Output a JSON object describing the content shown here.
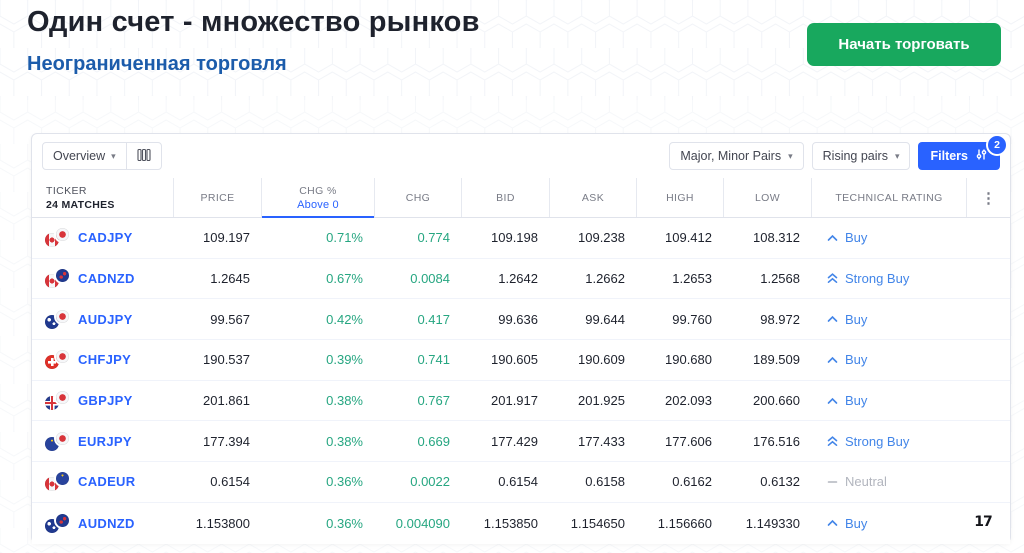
{
  "page": {
    "title": "Один счет - множество рынков",
    "subtitle": "Неограниченная торговля",
    "cta_label": "Начать торговать"
  },
  "toolbar": {
    "view_label": "Overview",
    "pairs_filter_label": "Major, Minor Pairs",
    "rising_filter_label": "Rising pairs",
    "filters_label": "Filters",
    "filters_badge": "2"
  },
  "icons": {
    "caret_down": "▾",
    "kebab": "⋮"
  },
  "table": {
    "header": {
      "ticker_label": "TICKER",
      "matches_label": "24 MATCHES",
      "price": "PRICE",
      "chg_pct": "CHG %",
      "chg_filter": "Above 0",
      "chg": "CHG",
      "bid": "BID",
      "ask": "ASK",
      "high": "HIGH",
      "low": "LOW",
      "rating": "TECHNICAL RATING"
    },
    "rows": [
      {
        "symbol": "CADJPY",
        "flags": [
          "ca",
          "jp"
        ],
        "price": "109.197",
        "chg_pct": "0.71%",
        "chg": "0.774",
        "bid": "109.198",
        "ask": "109.238",
        "high": "109.412",
        "low": "108.312",
        "rating_label": "Buy",
        "rating_type": "buy",
        "rating_icon": "chevron-up-icon"
      },
      {
        "symbol": "CADNZD",
        "flags": [
          "ca",
          "nz"
        ],
        "price": "1.2645",
        "chg_pct": "0.67%",
        "chg": "0.0084",
        "bid": "1.2642",
        "ask": "1.2662",
        "high": "1.2653",
        "low": "1.2568",
        "rating_label": "Strong Buy",
        "rating_type": "strong",
        "rating_icon": "double-chevron-up-icon"
      },
      {
        "symbol": "AUDJPY",
        "flags": [
          "au",
          "jp"
        ],
        "price": "99.567",
        "chg_pct": "0.42%",
        "chg": "0.417",
        "bid": "99.636",
        "ask": "99.644",
        "high": "99.760",
        "low": "98.972",
        "rating_label": "Buy",
        "rating_type": "buy",
        "rating_icon": "chevron-up-icon"
      },
      {
        "symbol": "CHFJPY",
        "flags": [
          "ch",
          "jp"
        ],
        "price": "190.537",
        "chg_pct": "0.39%",
        "chg": "0.741",
        "bid": "190.605",
        "ask": "190.609",
        "high": "190.680",
        "low": "189.509",
        "rating_label": "Buy",
        "rating_type": "buy",
        "rating_icon": "chevron-up-icon"
      },
      {
        "symbol": "GBPJPY",
        "flags": [
          "gb",
          "jp"
        ],
        "price": "201.861",
        "chg_pct": "0.38%",
        "chg": "0.767",
        "bid": "201.917",
        "ask": "201.925",
        "high": "202.093",
        "low": "200.660",
        "rating_label": "Buy",
        "rating_type": "buy",
        "rating_icon": "chevron-up-icon"
      },
      {
        "symbol": "EURJPY",
        "flags": [
          "eu",
          "jp"
        ],
        "price": "177.394",
        "chg_pct": "0.38%",
        "chg": "0.669",
        "bid": "177.429",
        "ask": "177.433",
        "high": "177.606",
        "low": "176.516",
        "rating_label": "Strong Buy",
        "rating_type": "strong",
        "rating_icon": "double-chevron-up-icon"
      },
      {
        "symbol": "CADEUR",
        "flags": [
          "ca",
          "eu"
        ],
        "price": "0.6154",
        "chg_pct": "0.36%",
        "chg": "0.0022",
        "bid": "0.6154",
        "ask": "0.6158",
        "high": "0.6162",
        "low": "0.6132",
        "rating_label": "Neutral",
        "rating_type": "neutral",
        "rating_icon": "dash-icon"
      },
      {
        "symbol": "AUDNZD",
        "flags": [
          "au",
          "nz"
        ],
        "price": "1.153800",
        "chg_pct": "0.36%",
        "chg": "0.004090",
        "bid": "1.153850",
        "ask": "1.154650",
        "high": "1.156660",
        "low": "1.149330",
        "rating_label": "Buy",
        "rating_type": "buy",
        "rating_icon": "chevron-up-icon"
      }
    ]
  },
  "colors": {
    "accent_blue": "#2962ff",
    "rating_blue": "#4285e8",
    "positive_green": "#26a681",
    "cta_green": "#18a85e",
    "subtitle_blue": "#1c5cab",
    "neutral_gray": "#b2b5be"
  }
}
